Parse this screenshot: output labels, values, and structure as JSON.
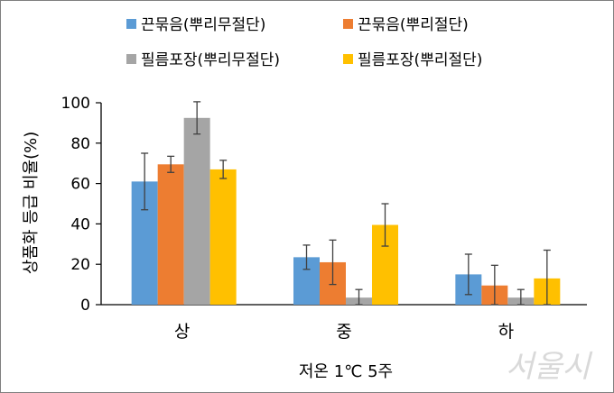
{
  "chart_data": {
    "type": "bar",
    "categories": [
      "상",
      "중",
      "하"
    ],
    "series": [
      {
        "name": "끈묶음(뿌리무절단)",
        "color": "#5b9bd5",
        "values": [
          61,
          23.5,
          15
        ],
        "errors": [
          14,
          6,
          10
        ]
      },
      {
        "name": "끈묶음(뿌리절단)",
        "color": "#ed7d31",
        "values": [
          69.5,
          21,
          9.5
        ],
        "errors": [
          4,
          11,
          10
        ]
      },
      {
        "name": "필름포장(뿌리무절단)",
        "color": "#a5a5a5",
        "values": [
          92.5,
          3.5,
          3.5
        ],
        "errors": [
          8,
          4,
          4
        ]
      },
      {
        "name": "필름포장(뿌리절단)",
        "color": "#ffc000",
        "values": [
          67,
          39.5,
          13
        ],
        "errors": [
          4.5,
          10.5,
          14
        ]
      }
    ],
    "title": "",
    "xlabel": "저온 1℃ 5주",
    "ylabel": "상품화 등급 비율(%)",
    "ylim": [
      0,
      100
    ],
    "yticks": [
      0,
      20,
      40,
      60,
      80,
      100
    ],
    "grid": false,
    "legend_position": "top"
  },
  "watermark": "서울시"
}
